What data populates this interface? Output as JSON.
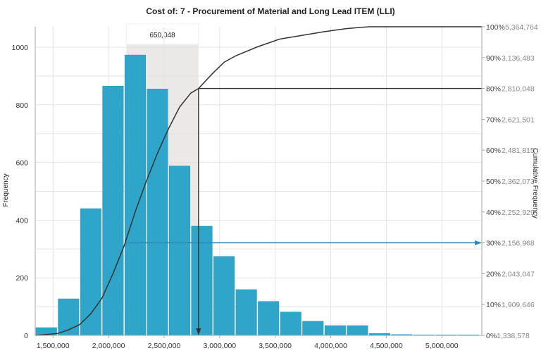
{
  "chart_data": {
    "type": "bar",
    "title": "Cost of: 7 - Procurement of Material and Long Lead ITEM (LLI)",
    "xlabel": "",
    "ylabel": "Frequency",
    "y2label": "Cumulative Frequency",
    "xlim": [
      1340000,
      5360000
    ],
    "ylim": [
      0,
      1080
    ],
    "grid": true,
    "x_ticks": [
      {
        "value": 1500000,
        "label": "1,500,000"
      },
      {
        "value": 2000000,
        "label": "2,000,000"
      },
      {
        "value": 2500000,
        "label": "2,500,000"
      },
      {
        "value": 3000000,
        "label": "3,000,000"
      },
      {
        "value": 3500000,
        "label": "3,500,000"
      },
      {
        "value": 4000000,
        "label": "4,000,000"
      },
      {
        "value": 4500000,
        "label": "4,500,000"
      },
      {
        "value": 5000000,
        "label": "5,000,000"
      }
    ],
    "y_ticks": [
      {
        "value": 0,
        "label": "0"
      },
      {
        "value": 200,
        "label": "200"
      },
      {
        "value": 400,
        "label": "400"
      },
      {
        "value": 600,
        "label": "600"
      },
      {
        "value": 800,
        "label": "800"
      },
      {
        "value": 1000,
        "label": "1000"
      }
    ],
    "y_minor_grid": [
      100,
      300,
      500,
      700,
      900
    ],
    "cumulative_axis": [
      {
        "pct": "0%",
        "value": "1,338,578"
      },
      {
        "pct": "10%",
        "value": "1,909,646"
      },
      {
        "pct": "20%",
        "value": "2,043,047"
      },
      {
        "pct": "30%",
        "value": "2,156,968"
      },
      {
        "pct": "40%",
        "value": "2,252,929"
      },
      {
        "pct": "50%",
        "value": "2,362,073"
      },
      {
        "pct": "60%",
        "value": "2,481,815"
      },
      {
        "pct": "70%",
        "value": "2,621,501"
      },
      {
        "pct": "80%",
        "value": "2,810,048"
      },
      {
        "pct": "90%",
        "value": "3,136,483"
      },
      {
        "pct": "100%",
        "value": "5,364,764"
      }
    ],
    "bin_width": 200000,
    "bins": [
      {
        "start": 1340000,
        "frequency": 27
      },
      {
        "start": 1540000,
        "frequency": 127
      },
      {
        "start": 1740000,
        "frequency": 440
      },
      {
        "start": 1940000,
        "frequency": 865
      },
      {
        "start": 2140000,
        "frequency": 973
      },
      {
        "start": 2340000,
        "frequency": 855
      },
      {
        "start": 2540000,
        "frequency": 588
      },
      {
        "start": 2740000,
        "frequency": 379
      },
      {
        "start": 2940000,
        "frequency": 274
      },
      {
        "start": 3140000,
        "frequency": 159
      },
      {
        "start": 3340000,
        "frequency": 118
      },
      {
        "start": 3540000,
        "frequency": 81
      },
      {
        "start": 3740000,
        "frequency": 49
      },
      {
        "start": 3940000,
        "frequency": 34
      },
      {
        "start": 4140000,
        "frequency": 34
      },
      {
        "start": 4340000,
        "frequency": 7
      },
      {
        "start": 4540000,
        "frequency": 3
      },
      {
        "start": 4740000,
        "frequency": 2
      },
      {
        "start": 4940000,
        "frequency": 1
      },
      {
        "start": 5140000,
        "frequency": 1
      }
    ],
    "cumulative_curve": [
      {
        "x": 1340000,
        "pct": 0
      },
      {
        "x": 1540000,
        "pct": 0.6
      },
      {
        "x": 1640000,
        "pct": 1.8
      },
      {
        "x": 1740000,
        "pct": 3.5
      },
      {
        "x": 1840000,
        "pct": 7
      },
      {
        "x": 1940000,
        "pct": 12
      },
      {
        "x": 2040000,
        "pct": 20
      },
      {
        "x": 2140000,
        "pct": 29
      },
      {
        "x": 2240000,
        "pct": 40
      },
      {
        "x": 2340000,
        "pct": 50
      },
      {
        "x": 2440000,
        "pct": 59
      },
      {
        "x": 2540000,
        "pct": 67
      },
      {
        "x": 2640000,
        "pct": 74
      },
      {
        "x": 2740000,
        "pct": 78.5
      },
      {
        "x": 2810048,
        "pct": 80
      },
      {
        "x": 2940000,
        "pct": 85
      },
      {
        "x": 3040000,
        "pct": 88.5
      },
      {
        "x": 3140000,
        "pct": 90.5
      },
      {
        "x": 3340000,
        "pct": 93.5
      },
      {
        "x": 3540000,
        "pct": 96
      },
      {
        "x": 3740000,
        "pct": 97.2
      },
      {
        "x": 3940000,
        "pct": 98.4
      },
      {
        "x": 4140000,
        "pct": 99.4
      },
      {
        "x": 4340000,
        "pct": 100
      },
      {
        "x": 5360000,
        "pct": 100
      }
    ],
    "annotations": {
      "range_label": "650,048",
      "range_start": 2160000,
      "range_end": 2810048,
      "p80_value": 2810048,
      "p80_pct": 80,
      "p30_value": 2156968,
      "p30_pct": 30
    },
    "colors": {
      "bar": "#2fa6c9",
      "bar_edge": "#ffffff",
      "curve": "#333333",
      "p80_line": "#333333",
      "p30_line": "#2f8ab5",
      "range_band": "#ebe9e8",
      "grid": "#e3e3e3"
    }
  }
}
